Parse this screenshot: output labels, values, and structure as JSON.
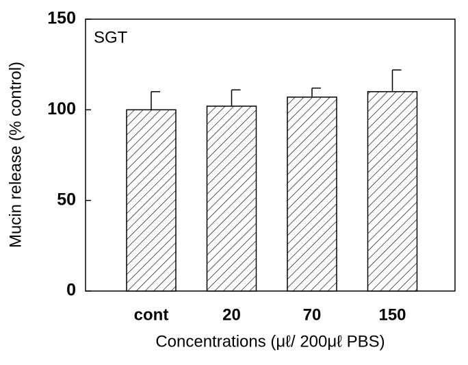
{
  "chart_data": {
    "type": "bar",
    "title": "SGT",
    "x_label": "Concentrations (μℓ/ 200μℓ PBS)",
    "y_label": "Mucin release (% control)",
    "categories": [
      "cont",
      "20",
      "70",
      "150"
    ],
    "values": [
      100,
      102,
      107,
      110
    ],
    "errors": [
      10,
      9,
      5,
      12
    ],
    "color": "#000000",
    "ylim": [
      0,
      150
    ],
    "yticks": [
      0,
      50,
      100,
      150
    ],
    "grid": false
  }
}
